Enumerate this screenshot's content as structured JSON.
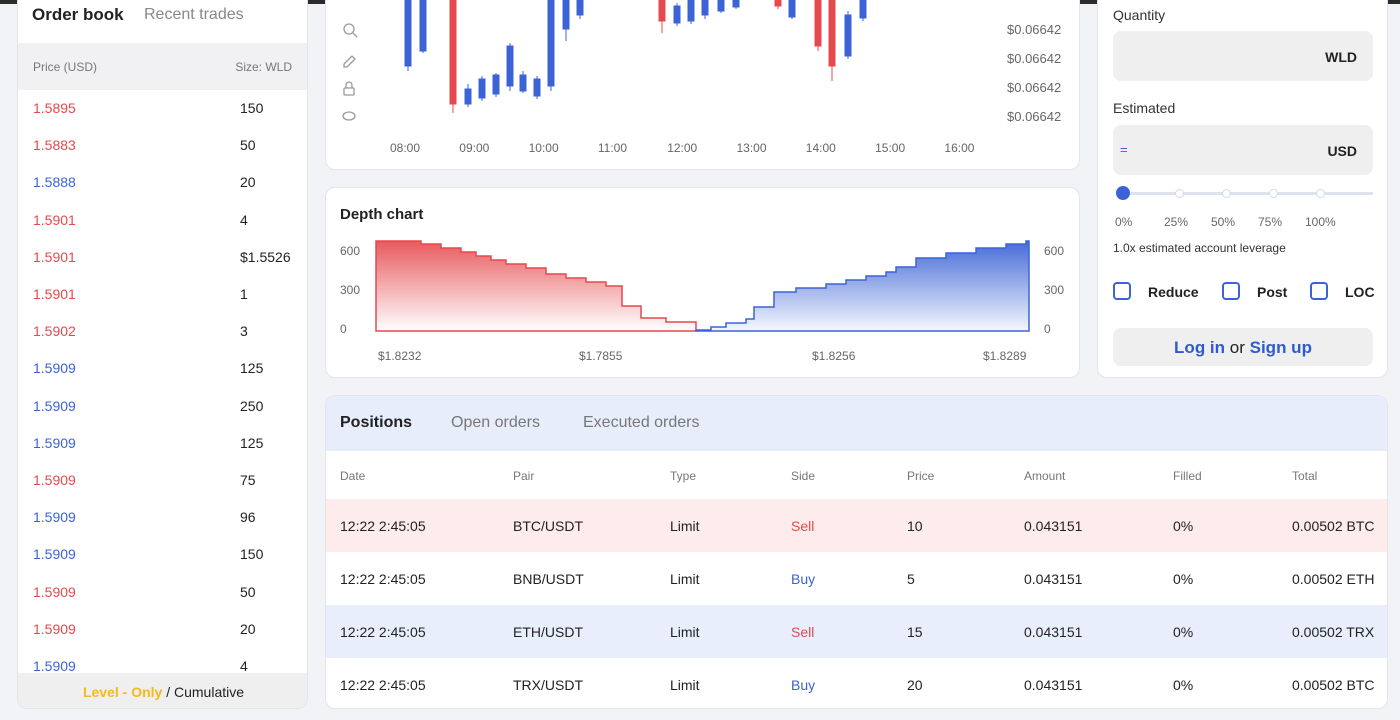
{
  "order_book": {
    "tabs": [
      "Order book",
      "Recent trades"
    ],
    "columns": [
      "Price (USD)",
      "Size: WLD"
    ],
    "rows": [
      {
        "price": "1.5895",
        "size": "150",
        "color": "#e5484d"
      },
      {
        "price": "1.5883",
        "size": "50",
        "color": "#e5484d"
      },
      {
        "price": "1.5888",
        "size": "20",
        "color": "#3b63d6"
      },
      {
        "price": "1.5901",
        "size": "4",
        "color": "#e5484d"
      },
      {
        "price": "1.5901",
        "size": "$1.5526",
        "color": "#e5484d"
      },
      {
        "price": "1.5901",
        "size": "1",
        "color": "#e5484d"
      },
      {
        "price": "1.5902",
        "size": "3",
        "color": "#e5484d"
      },
      {
        "price": "1.5909",
        "size": "125",
        "color": "#3b63d6"
      },
      {
        "price": "1.5909",
        "size": "250",
        "color": "#3b63d6"
      },
      {
        "price": "1.5909",
        "size": "125",
        "color": "#3b63d6"
      },
      {
        "price": "1.5909",
        "size": "75",
        "color": "#e5484d"
      },
      {
        "price": "1.5909",
        "size": "96",
        "color": "#3b63d6"
      },
      {
        "price": "1.5909",
        "size": "150",
        "color": "#3b63d6"
      },
      {
        "price": "1.5909",
        "size": "50",
        "color": "#e5484d"
      },
      {
        "price": "1.5909",
        "size": "20",
        "color": "#e5484d"
      },
      {
        "price": "1.5909",
        "size": "4",
        "color": "#3b63d6"
      }
    ],
    "footer": {
      "highlight": "Level - Only",
      "rest": "/ Cumulative"
    }
  },
  "price_chart": {
    "times": [
      "08:00",
      "09:00",
      "10:00",
      "11:00",
      "12:00",
      "13:00",
      "14:00",
      "15:00",
      "16:00"
    ],
    "prices": [
      "$0.06642",
      "$0.06642",
      "$0.06642",
      "$0.06642"
    ]
  },
  "depth_chart": {
    "title": "Depth chart",
    "y_labels": [
      "600",
      "300",
      "0"
    ],
    "x_labels": [
      "$1.8232",
      "$1.7855",
      "$1.8256",
      "$1.8289"
    ]
  },
  "order_form": {
    "quantity_label": "Quantity",
    "quantity_unit": "WLD",
    "estimated_label": "Estimated",
    "estimated_prefix": "=",
    "estimated_unit": "USD",
    "slider_labels": [
      "0%",
      "25%",
      "50%",
      "75%",
      "100%"
    ],
    "leverage_note": "1.0x estimated account leverage",
    "options": [
      "Reduce",
      "Post",
      "LOC"
    ],
    "login": {
      "log_in": "Log in",
      "or": "or",
      "sign_up": "Sign up"
    }
  },
  "positions": {
    "tabs": [
      "Positions",
      "Open orders",
      "Executed orders"
    ],
    "columns": [
      "Date",
      "Pair",
      "Type",
      "Side",
      "Price",
      "Amount",
      "Filled",
      "Total"
    ],
    "rows": [
      {
        "cells": [
          "12:22 2:45:05",
          "BTC/USDT",
          "Limit",
          "Sell",
          "10",
          "0.043151",
          "0%",
          "0.00502 BTC"
        ],
        "background": "#fdeceb",
        "side_color": "#e5484d"
      },
      {
        "cells": [
          "12:22 2:45:05",
          "BNB/USDT",
          "Limit",
          "Buy",
          "5",
          "0.043151",
          "0%",
          "0.00502 ETH"
        ],
        "background": "#ffffff",
        "side_color": "#3b63d6"
      },
      {
        "cells": [
          "12:22 2:45:05",
          "ETH/USDT",
          "Limit",
          "Sell",
          "15",
          "0.043151",
          "0%",
          "0.00502 TRX"
        ],
        "background": "#e8eefc",
        "side_color": "#e5484d"
      },
      {
        "cells": [
          "12:22 2:45:05",
          "TRX/USDT",
          "Limit",
          "Buy",
          "20",
          "0.043151",
          "0%",
          "0.00502 BTC"
        ],
        "background": "#ffffff",
        "side_color": "#3b63d6"
      }
    ]
  }
}
